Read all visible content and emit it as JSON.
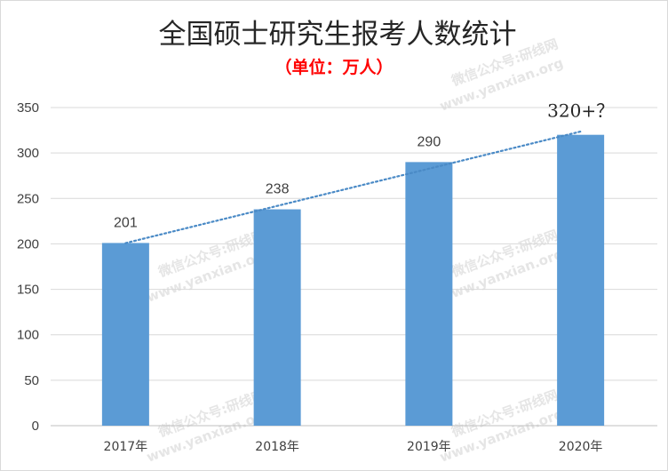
{
  "chart_data": {
    "type": "bar",
    "title": "全国硕士研究生报考人数统计",
    "subtitle": "（单位：万人）",
    "categories": [
      "2017年",
      "2018年",
      "2019年",
      "2020年"
    ],
    "values": [
      201,
      238,
      290,
      320
    ],
    "data_labels": [
      "201",
      "238",
      "290",
      "320+？"
    ],
    "yticks": [
      0,
      50,
      100,
      150,
      200,
      250,
      300,
      350
    ],
    "ylim": [
      0,
      350
    ],
    "grid": true,
    "legend": "none",
    "trendline": "linear, dotted",
    "colors": {
      "bar": "#5b9bd5",
      "trend": "#4a8ac6",
      "grid": "#d9d9d9"
    }
  },
  "watermark": {
    "line1": "微信公众号:研线网",
    "line2": "www.yanxian.org"
  }
}
